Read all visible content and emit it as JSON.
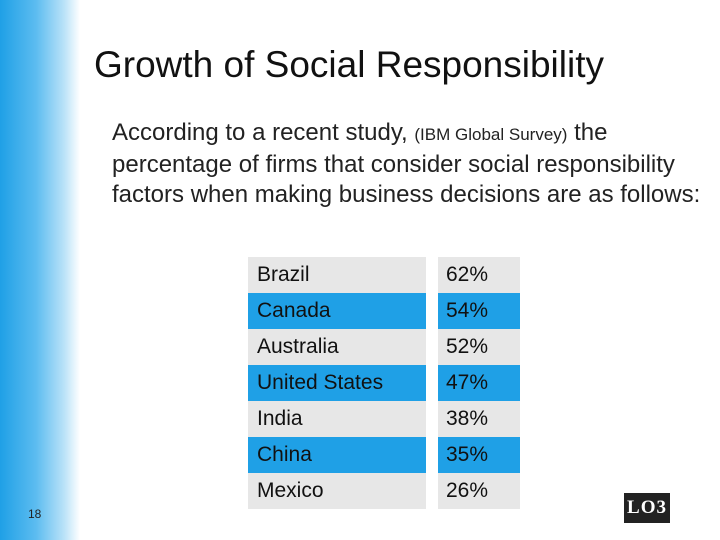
{
  "slide": {
    "title": "Growth of Social Responsibility",
    "body_main": "According to a recent study,",
    "body_source": "(IBM Global Survey)",
    "body_rest": "the percentage of firms that consider social responsibility factors when making business decisions are as follows:",
    "page_number": "18",
    "badge": "LO3"
  },
  "table": {
    "rows": [
      {
        "country": "Brazil",
        "percent": "62%"
      },
      {
        "country": "Canada",
        "percent": "54%"
      },
      {
        "country": "Australia",
        "percent": "52%"
      },
      {
        "country": "United States",
        "percent": "47%"
      },
      {
        "country": "India",
        "percent": "38%"
      },
      {
        "country": "China",
        "percent": "35%"
      },
      {
        "country": "Mexico",
        "percent": "26%"
      }
    ]
  },
  "colors": {
    "accent_blue": "#1fa0e6",
    "row_gray": "#e7e7e7",
    "badge_bg": "#222222"
  }
}
